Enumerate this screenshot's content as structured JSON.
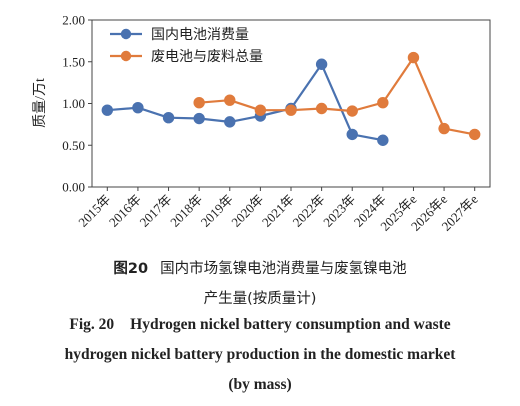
{
  "chart_data": {
    "type": "line",
    "categories": [
      "2015年",
      "2016年",
      "2017年",
      "2018年",
      "2019年",
      "2020年",
      "2021年",
      "2022年",
      "2023年",
      "2024年",
      "2025年e",
      "2026年e",
      "2027年e"
    ],
    "ylabel": "质量/万t",
    "ylim": [
      0,
      2.0
    ],
    "yticks": [
      "0.00",
      "0.50",
      "1.00",
      "1.50",
      "2.00"
    ],
    "grid": false,
    "legend_position": "top-left",
    "series": [
      {
        "name": "国内电池消费量",
        "color": "#4a72b0",
        "values": [
          0.92,
          0.95,
          0.83,
          0.82,
          0.78,
          0.85,
          0.94,
          1.47,
          0.63,
          0.56,
          null,
          null,
          null
        ]
      },
      {
        "name": "废电池与废料总量",
        "color": "#e07b3c",
        "values": [
          null,
          null,
          null,
          1.01,
          1.04,
          0.92,
          0.92,
          0.94,
          0.91,
          1.01,
          1.55,
          0.7,
          0.63
        ]
      }
    ]
  },
  "caption": {
    "zh_number": "图20",
    "zh_line1": "国内市场氢镍电池消费量与废氢镍电池",
    "zh_line2": "产生量(按质量计)",
    "en_number": "Fig. 20",
    "en_line1": "Hydrogen nickel battery consumption and waste",
    "en_line2": "hydrogen nickel battery production in the domestic market",
    "en_line3": "(by mass)"
  }
}
